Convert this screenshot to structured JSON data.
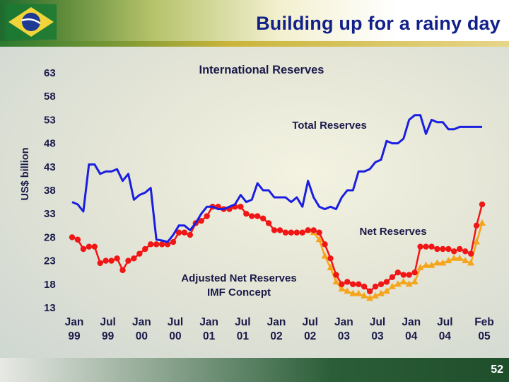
{
  "page": {
    "title": "Building up for a rainy day",
    "page_number": "52"
  },
  "colors": {
    "total": "#1a1ee0",
    "net": "#f01616",
    "adjusted": "#f5a51b",
    "title": "#12218a"
  },
  "chart_data": {
    "type": "line",
    "title": "International Reserves",
    "ylabel": "US$ billion",
    "xlabel": "",
    "ylim": [
      13,
      63
    ],
    "yticks": [
      "63",
      "58",
      "53",
      "48",
      "43",
      "38",
      "33",
      "28",
      "23",
      "18",
      "13"
    ],
    "xticks": [
      {
        "month": 0,
        "line1": "Jan",
        "line2": "99"
      },
      {
        "month": 6,
        "line1": "Jul",
        "line2": "99"
      },
      {
        "month": 12,
        "line1": "Jan",
        "line2": "00"
      },
      {
        "month": 18,
        "line1": "Jul",
        "line2": "00"
      },
      {
        "month": 24,
        "line1": "Jan",
        "line2": "01"
      },
      {
        "month": 30,
        "line1": "Jul",
        "line2": "01"
      },
      {
        "month": 36,
        "line1": "Jan",
        "line2": "02"
      },
      {
        "month": 42,
        "line1": "Jul",
        "line2": "02"
      },
      {
        "month": 48,
        "line1": "Jan",
        "line2": "03"
      },
      {
        "month": 54,
        "line1": "Jul",
        "line2": "03"
      },
      {
        "month": 60,
        "line1": "Jan",
        "line2": "04"
      },
      {
        "month": 66,
        "line1": "Jul",
        "line2": "04"
      },
      {
        "month": 73,
        "line1": "Feb",
        "line2": "05"
      }
    ],
    "series": [
      {
        "name": "Total Reserves",
        "label": "Total Reserves",
        "marker": "none",
        "x": [
          0,
          1,
          2,
          3,
          4,
          5,
          6,
          7,
          8,
          9,
          10,
          11,
          12,
          13,
          14,
          15,
          16,
          17,
          18,
          19,
          20,
          21,
          22,
          23,
          24,
          25,
          26,
          27,
          28,
          29,
          30,
          31,
          32,
          33,
          34,
          35,
          36,
          37,
          38,
          39,
          40,
          41,
          42,
          43,
          44,
          45,
          46,
          47,
          48,
          49,
          50,
          51,
          52,
          53,
          54,
          55,
          56,
          57,
          58,
          59,
          60,
          61,
          62,
          63,
          64,
          65,
          66,
          67,
          68,
          69,
          70,
          71,
          72,
          73
        ],
        "values": [
          35.5,
          35,
          33.5,
          43.5,
          43.5,
          41.5,
          42,
          42,
          42.5,
          40,
          41.5,
          36,
          37,
          37.5,
          38.5,
          27.5,
          27.3,
          27,
          28.5,
          30.5,
          30.5,
          29.5,
          31,
          33,
          34.5,
          34.5,
          34,
          34,
          34.5,
          35,
          37,
          35.5,
          36,
          39.5,
          38,
          38,
          36.5,
          36.5,
          36.5,
          35.5,
          36.5,
          34.5,
          40,
          36.5,
          34.5,
          34,
          34.5,
          34,
          36.5,
          38,
          38,
          42,
          42,
          42.5,
          44,
          44.5,
          48.5,
          48,
          48,
          49,
          53,
          54,
          54,
          50,
          53,
          52.5,
          52.5,
          51,
          51,
          51.5,
          51.5,
          51.5,
          51.5,
          51.5
        ]
      },
      {
        "name": "Net Reserves",
        "label": "Net Reserves",
        "marker": "circle",
        "x": [
          0,
          1,
          2,
          3,
          4,
          5,
          6,
          7,
          8,
          9,
          10,
          11,
          12,
          13,
          14,
          15,
          16,
          17,
          18,
          19,
          20,
          21,
          22,
          23,
          24,
          25,
          26,
          27,
          28,
          29,
          30,
          31,
          32,
          33,
          34,
          35,
          36,
          37,
          38,
          39,
          40,
          41,
          42,
          43,
          44,
          45,
          46,
          47,
          48,
          49,
          50,
          51,
          52,
          53,
          54,
          55,
          56,
          57,
          58,
          59,
          60,
          61,
          62,
          63,
          64,
          65,
          66,
          67,
          68,
          69,
          70,
          71,
          72,
          73
        ],
        "values": [
          28,
          27.5,
          25.5,
          26,
          26,
          22.5,
          23,
          23,
          23.5,
          21,
          23,
          23.5,
          24.5,
          25.5,
          26.5,
          26.5,
          26.5,
          26.5,
          27,
          29,
          29,
          28.5,
          31,
          31.5,
          32.5,
          34.5,
          34.5,
          34,
          34,
          34.5,
          34.5,
          33,
          32.5,
          32.5,
          32,
          31,
          29.5,
          29.5,
          29,
          29,
          29,
          29,
          29.5,
          29.5,
          29,
          26.5,
          23.5,
          20,
          18,
          18.5,
          18,
          18,
          17.5,
          16.5,
          17.5,
          18,
          18.5,
          19.5,
          20.5,
          20,
          20,
          20.5,
          26,
          26,
          26,
          25.5,
          25.5,
          25.5,
          25,
          25.5,
          25,
          24.5,
          30.5,
          35
        ]
      },
      {
        "name": "Adjusted Net Reserves IMF Concept",
        "label": "Adjusted Net Reserves\nIMF Concept",
        "marker": "triangle",
        "x": [
          42,
          43,
          44,
          45,
          46,
          47,
          48,
          49,
          50,
          51,
          52,
          53,
          54,
          55,
          56,
          57,
          58,
          59,
          60,
          61,
          62,
          63,
          64,
          65,
          66,
          67,
          68,
          69,
          70,
          71,
          72,
          73
        ],
        "values": [
          29.5,
          29,
          27.5,
          24,
          21.5,
          18.5,
          17,
          16.5,
          16,
          16,
          15.5,
          15,
          15.5,
          16,
          16.5,
          17.5,
          18,
          18.5,
          18,
          18.5,
          21.5,
          22,
          22,
          22.5,
          22.5,
          23,
          23.5,
          23.5,
          23,
          22.5,
          27,
          31
        ]
      }
    ],
    "annotations": [
      "Total Reserves",
      "Net Reserves",
      "Adjusted Net Reserves",
      "IMF Concept"
    ]
  }
}
